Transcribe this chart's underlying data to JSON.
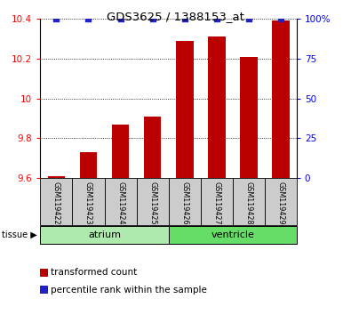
{
  "title": "GDS3625 / 1388153_at",
  "samples": [
    "GSM119422",
    "GSM119423",
    "GSM119424",
    "GSM119425",
    "GSM119426",
    "GSM119427",
    "GSM119428",
    "GSM119429"
  ],
  "transformed_counts": [
    9.61,
    9.73,
    9.87,
    9.91,
    10.29,
    10.31,
    10.21,
    10.39
  ],
  "percentile_ranks": [
    100,
    100,
    100,
    100,
    100,
    100,
    100,
    100
  ],
  "groups": [
    {
      "label": "atrium",
      "start": 0,
      "end": 4,
      "color": "#aeeaae"
    },
    {
      "label": "ventricle",
      "start": 4,
      "end": 8,
      "color": "#66dd66"
    }
  ],
  "ylim_left": [
    9.6,
    10.4
  ],
  "ylim_right": [
    0,
    100
  ],
  "yticks_left": [
    9.6,
    9.8,
    10.0,
    10.2,
    10.4
  ],
  "yticks_right": [
    0,
    25,
    50,
    75,
    100
  ],
  "bar_color": "#bb0000",
  "dot_color": "#2222cc",
  "dot_size": 18,
  "bar_width": 0.55,
  "background_color": "#ffffff",
  "tick_area_color": "#cccccc",
  "legend_items": [
    {
      "label": "transformed count",
      "color": "#bb0000"
    },
    {
      "label": "percentile rank within the sample",
      "color": "#2222cc"
    }
  ]
}
